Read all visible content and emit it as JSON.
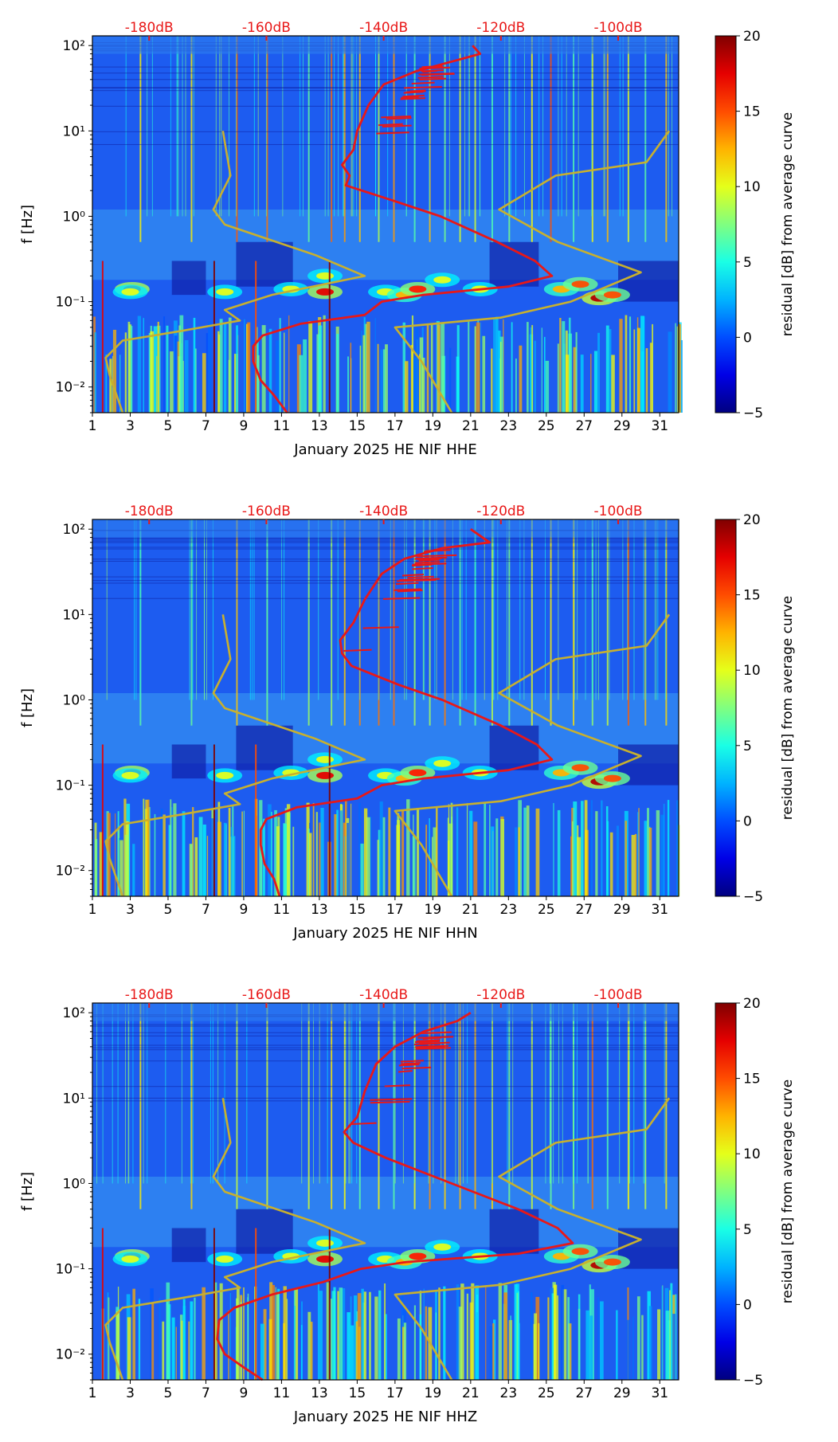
{
  "chart_data": [
    {
      "type": "heatmap",
      "component": "HHE",
      "xlabel": "January 2025 HE NIF  HHE",
      "ylabel": "f [Hz]",
      "x_ticks": [
        1,
        3,
        5,
        7,
        9,
        11,
        13,
        15,
        17,
        19,
        21,
        23,
        25,
        27,
        29,
        31
      ],
      "x_tick_labels": [
        "1",
        "3",
        "5",
        "7",
        "9",
        "11",
        "13",
        "15",
        "17",
        "19",
        "21",
        "23",
        "25",
        "27",
        "29",
        "31"
      ],
      "y_ticks": [
        0.01,
        0.1,
        1,
        10,
        100
      ],
      "y_tick_labels": [
        "10⁻²",
        "10⁻¹",
        "10⁰",
        "10¹",
        "10²"
      ],
      "xlim": [
        1,
        32
      ],
      "ylim": [
        0.005,
        130
      ],
      "top_db_labels": [
        "-180dB",
        "-160dB",
        "-140dB",
        "-120dB",
        "-100dB"
      ],
      "top_db_positions": [
        4,
        10.2,
        16.4,
        22.6,
        28.8
      ],
      "colorbar": {
        "label": "residual [dB] from average curve",
        "min": -5,
        "max": 20,
        "ticks": [
          -5,
          0,
          5,
          10,
          15,
          20
        ],
        "tick_labels": [
          "−5",
          "0",
          "5",
          "10",
          "15",
          "20"
        ]
      },
      "noise_model_low": [
        [
          10,
          7.9
        ],
        [
          3,
          8.3
        ],
        [
          1.2,
          7.4
        ],
        [
          0.8,
          8.0
        ],
        [
          0.35,
          12.8
        ],
        [
          0.2,
          15.4
        ],
        [
          0.12,
          10.5
        ],
        [
          0.08,
          8.0
        ],
        [
          0.06,
          8.8
        ],
        [
          0.045,
          5.6
        ],
        [
          0.035,
          2.6
        ],
        [
          0.022,
          1.7
        ],
        [
          0.014,
          1.9
        ],
        [
          0.005,
          2.6
        ]
      ],
      "noise_model_high": [
        [
          10,
          31.5
        ],
        [
          4.3,
          30.3
        ],
        [
          3,
          25.5
        ],
        [
          1.2,
          22.5
        ],
        [
          0.5,
          25.6
        ],
        [
          0.22,
          30.0
        ],
        [
          0.1,
          26.3
        ],
        [
          0.065,
          22.6
        ],
        [
          0.05,
          17.0
        ],
        [
          0.02,
          18.4
        ],
        [
          0.005,
          20.0
        ]
      ],
      "average_curve": [
        [
          100,
          21.1
        ],
        [
          80,
          21.5
        ],
        [
          65,
          20.0
        ],
        [
          50,
          18.1
        ],
        [
          35,
          16.4
        ],
        [
          20,
          15.6
        ],
        [
          10,
          15.0
        ],
        [
          6,
          14.8
        ],
        [
          4,
          14.2
        ],
        [
          3,
          14.6
        ],
        [
          2.3,
          14.4
        ],
        [
          1.5,
          17.0
        ],
        [
          1,
          19.4
        ],
        [
          0.5,
          22.4
        ],
        [
          0.3,
          24.4
        ],
        [
          0.2,
          25.3
        ],
        [
          0.15,
          23.0
        ],
        [
          0.12,
          18.5
        ],
        [
          0.1,
          16.3
        ],
        [
          0.07,
          15.4
        ],
        [
          0.055,
          12.0
        ],
        [
          0.04,
          10.0
        ],
        [
          0.03,
          9.5
        ],
        [
          0.02,
          9.5
        ],
        [
          0.012,
          9.9
        ],
        [
          0.008,
          10.6
        ],
        [
          0.005,
          11.3
        ]
      ]
    },
    {
      "type": "heatmap",
      "component": "HHN",
      "xlabel": "January 2025 HE NIF  HHN",
      "ylabel": "f [Hz]",
      "x_ticks": [
        1,
        3,
        5,
        7,
        9,
        11,
        13,
        15,
        17,
        19,
        21,
        23,
        25,
        27,
        29,
        31
      ],
      "x_tick_labels": [
        "1",
        "3",
        "5",
        "7",
        "9",
        "11",
        "13",
        "15",
        "17",
        "19",
        "21",
        "23",
        "25",
        "27",
        "29",
        "31"
      ],
      "y_ticks": [
        0.01,
        0.1,
        1,
        10,
        100
      ],
      "y_tick_labels": [
        "10⁻²",
        "10⁻¹",
        "10⁰",
        "10¹",
        "10²"
      ],
      "xlim": [
        1,
        32
      ],
      "ylim": [
        0.005,
        130
      ],
      "top_db_labels": [
        "-180dB",
        "-160dB",
        "-140dB",
        "-120dB",
        "-100dB"
      ],
      "top_db_positions": [
        4,
        10.2,
        16.4,
        22.6,
        28.8
      ],
      "colorbar": {
        "label": "residual [dB] from average curve",
        "min": -5,
        "max": 20,
        "ticks": [
          -5,
          0,
          5,
          10,
          15,
          20
        ],
        "tick_labels": [
          "−5",
          "0",
          "5",
          "10",
          "15",
          "20"
        ]
      },
      "noise_model_low": [
        [
          10,
          7.9
        ],
        [
          3,
          8.3
        ],
        [
          1.2,
          7.4
        ],
        [
          0.8,
          8.0
        ],
        [
          0.35,
          12.8
        ],
        [
          0.2,
          15.4
        ],
        [
          0.12,
          10.5
        ],
        [
          0.08,
          8.0
        ],
        [
          0.06,
          8.8
        ],
        [
          0.045,
          5.6
        ],
        [
          0.035,
          2.6
        ],
        [
          0.022,
          1.7
        ],
        [
          0.014,
          1.9
        ],
        [
          0.005,
          2.6
        ]
      ],
      "noise_model_high": [
        [
          10,
          31.5
        ],
        [
          4.3,
          30.3
        ],
        [
          3,
          25.5
        ],
        [
          1.2,
          22.5
        ],
        [
          0.5,
          25.6
        ],
        [
          0.22,
          30.0
        ],
        [
          0.1,
          26.3
        ],
        [
          0.065,
          22.6
        ],
        [
          0.05,
          17.0
        ],
        [
          0.02,
          18.4
        ],
        [
          0.005,
          20.0
        ]
      ],
      "average_curve": [
        [
          100,
          21.0
        ],
        [
          70,
          22.0
        ],
        [
          60,
          19.5
        ],
        [
          45,
          17.5
        ],
        [
          30,
          16.3
        ],
        [
          15,
          15.4
        ],
        [
          8,
          14.8
        ],
        [
          5,
          14.1
        ],
        [
          3.5,
          14.2
        ],
        [
          2.5,
          14.7
        ],
        [
          1.5,
          17.2
        ],
        [
          1,
          19.5
        ],
        [
          0.5,
          22.6
        ],
        [
          0.3,
          24.5
        ],
        [
          0.2,
          25.3
        ],
        [
          0.15,
          23.0
        ],
        [
          0.12,
          18.5
        ],
        [
          0.1,
          16.3
        ],
        [
          0.07,
          15.0
        ],
        [
          0.055,
          11.8
        ],
        [
          0.04,
          10.2
        ],
        [
          0.03,
          9.9
        ],
        [
          0.02,
          9.9
        ],
        [
          0.012,
          10.1
        ],
        [
          0.008,
          10.6
        ],
        [
          0.005,
          10.9
        ]
      ]
    },
    {
      "type": "heatmap",
      "component": "HHZ",
      "xlabel": "January 2025 HE NIF  HHZ",
      "ylabel": "f [Hz]",
      "x_ticks": [
        1,
        3,
        5,
        7,
        9,
        11,
        13,
        15,
        17,
        19,
        21,
        23,
        25,
        27,
        29,
        31
      ],
      "x_tick_labels": [
        "1",
        "3",
        "5",
        "7",
        "9",
        "11",
        "13",
        "15",
        "17",
        "19",
        "21",
        "23",
        "25",
        "27",
        "29",
        "31"
      ],
      "y_ticks": [
        0.01,
        0.1,
        1,
        10,
        100
      ],
      "y_tick_labels": [
        "10⁻²",
        "10⁻¹",
        "10⁰",
        "10¹",
        "10²"
      ],
      "xlim": [
        1,
        32
      ],
      "ylim": [
        0.005,
        130
      ],
      "top_db_labels": [
        "-180dB",
        "-160dB",
        "-140dB",
        "-120dB",
        "-100dB"
      ],
      "top_db_positions": [
        4,
        10.2,
        16.4,
        22.6,
        28.8
      ],
      "colorbar": {
        "label": "residual [dB] from average curve",
        "min": -5,
        "max": 20,
        "ticks": [
          -5,
          0,
          5,
          10,
          15,
          20
        ],
        "tick_labels": [
          "−5",
          "0",
          "5",
          "10",
          "15",
          "20"
        ]
      },
      "noise_model_low": [
        [
          10,
          7.9
        ],
        [
          3,
          8.3
        ],
        [
          1.2,
          7.4
        ],
        [
          0.8,
          8.0
        ],
        [
          0.35,
          12.8
        ],
        [
          0.2,
          15.4
        ],
        [
          0.12,
          10.5
        ],
        [
          0.08,
          8.0
        ],
        [
          0.06,
          8.8
        ],
        [
          0.045,
          5.6
        ],
        [
          0.035,
          2.6
        ],
        [
          0.022,
          1.7
        ],
        [
          0.014,
          1.9
        ],
        [
          0.005,
          2.6
        ]
      ],
      "noise_model_high": [
        [
          10,
          31.5
        ],
        [
          4.3,
          30.3
        ],
        [
          3,
          25.5
        ],
        [
          1.2,
          22.5
        ],
        [
          0.5,
          25.6
        ],
        [
          0.22,
          30.0
        ],
        [
          0.1,
          26.3
        ],
        [
          0.065,
          22.6
        ],
        [
          0.05,
          17.0
        ],
        [
          0.02,
          18.4
        ],
        [
          0.005,
          20.0
        ]
      ],
      "average_curve": [
        [
          100,
          21.0
        ],
        [
          80,
          20.3
        ],
        [
          60,
          18.5
        ],
        [
          40,
          17.0
        ],
        [
          25,
          16.0
        ],
        [
          12,
          15.4
        ],
        [
          6,
          15.0
        ],
        [
          4,
          14.3
        ],
        [
          3,
          14.8
        ],
        [
          2,
          16.5
        ],
        [
          1,
          20.0
        ],
        [
          0.5,
          23.5
        ],
        [
          0.3,
          25.6
        ],
        [
          0.2,
          26.4
        ],
        [
          0.15,
          23.5
        ],
        [
          0.12,
          17.6
        ],
        [
          0.1,
          15.2
        ],
        [
          0.07,
          13.2
        ],
        [
          0.05,
          10.5
        ],
        [
          0.035,
          8.5
        ],
        [
          0.025,
          7.7
        ],
        [
          0.015,
          7.6
        ],
        [
          0.01,
          8.0
        ],
        [
          0.007,
          9.0
        ],
        [
          0.005,
          10.0
        ]
      ]
    }
  ]
}
